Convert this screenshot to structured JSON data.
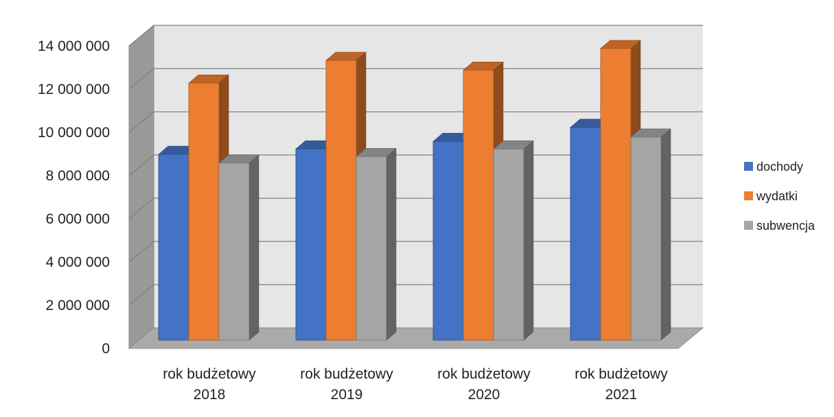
{
  "chart_data": {
    "type": "bar",
    "style": "3d-clustered-column",
    "categories": [
      "rok budżetowy 2018",
      "rok budżetowy 2019",
      "rok budżetowy 2020",
      "rok budżetowy 2021"
    ],
    "category_lines": [
      [
        "rok budżetowy",
        "2018"
      ],
      [
        "rok budżetowy",
        "2019"
      ],
      [
        "rok budżetowy",
        "2020"
      ],
      [
        "rok budżetowy",
        "2021"
      ]
    ],
    "series": [
      {
        "name": "dochody",
        "color": "#4472C4",
        "values": [
          8600000,
          8850000,
          9200000,
          9850000
        ]
      },
      {
        "name": "wydatki",
        "color": "#ED7D31",
        "values": [
          11900000,
          12950000,
          12500000,
          13500000
        ]
      },
      {
        "name": "subwencja",
        "color": "#A5A5A5",
        "values": [
          8200000,
          8500000,
          8850000,
          9400000
        ]
      }
    ],
    "ylim": [
      0,
      14000000
    ],
    "y_ticks": [
      {
        "value": 0,
        "label": "0"
      },
      {
        "value": 2000000,
        "label": "2 000 000"
      },
      {
        "value": 4000000,
        "label": "4 000 000"
      },
      {
        "value": 6000000,
        "label": "6 000 000"
      },
      {
        "value": 8000000,
        "label": "8 000 000"
      },
      {
        "value": 10000000,
        "label": "10 000 000"
      },
      {
        "value": 12000000,
        "label": "12 000 000"
      },
      {
        "value": 14000000,
        "label": "14 000 000"
      }
    ],
    "grid": true,
    "legend_position": "right",
    "title": "",
    "xlabel": "",
    "ylabel": ""
  }
}
